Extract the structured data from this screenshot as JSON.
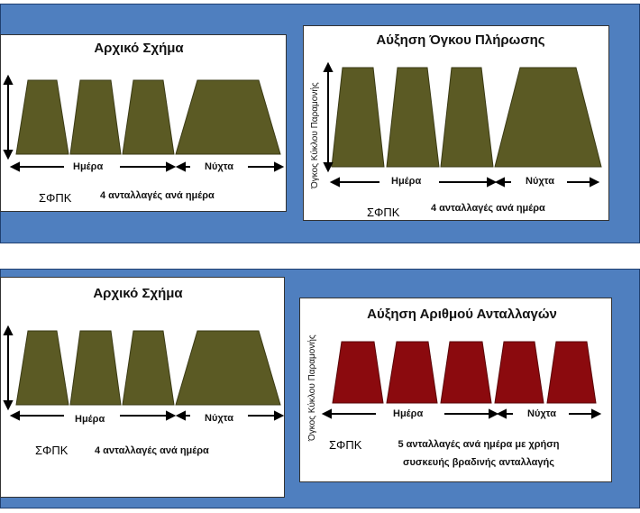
{
  "panels": {
    "top_left": {
      "title": "Αρχικό Σχήμα",
      "day_label": "Ημέρα",
      "night_label": "Νύχτα",
      "sfpk": "ΣΦΠΚ",
      "note": "4 ανταλλαγές ανά ημέρα",
      "fill": "#5b5a24"
    },
    "top_right": {
      "title": "Αύξηση Όγκου Πλήρωσης",
      "vertical_label": "Όγκος Κύκλου Παραμονής",
      "day_label": "Ημέρα",
      "night_label": "Νύχτα",
      "sfpk": "ΣΦΠΚ",
      "note": "4 ανταλλαγές ανά ημέρα",
      "fill": "#5b5a24"
    },
    "bottom_left": {
      "title": "Αρχικό Σχήμα",
      "day_label": "Ημέρα",
      "night_label": "Νύχτα",
      "sfpk": "ΣΦΠΚ",
      "note": "4 ανταλλαγές ανά ημέρα",
      "fill": "#5b5a24"
    },
    "bottom_right": {
      "title": "Αύξηση Αριθμού Ανταλλαγών",
      "vertical_label": "Όγκος Κύκλου Παραμονής",
      "day_label": "Ημέρα",
      "night_label": "Νύχτα",
      "sfpk": "ΣΦΠΚ",
      "note_line1": "5 ανταλλαγές ανά ημέρα με χρήση",
      "note_line2": "συσκευής βραδινής ανταλλαγής",
      "fill": "#8b0a0e"
    }
  },
  "colors": {
    "band": "#4f7fbf",
    "olive": "#5b5a24",
    "red": "#8b0a0e"
  }
}
